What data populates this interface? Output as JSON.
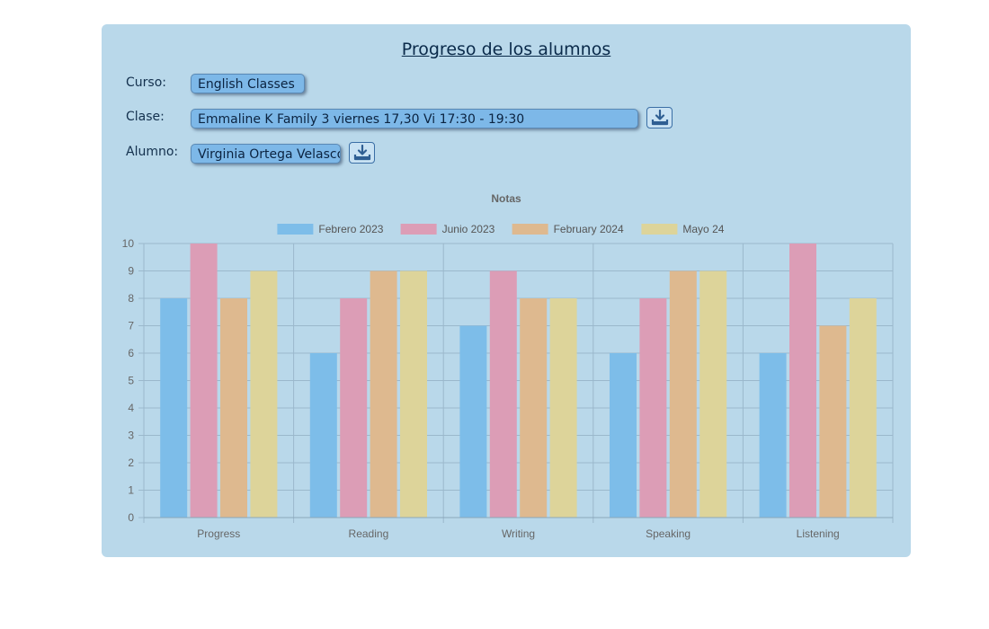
{
  "page": {
    "title": "Progreso de los alumnos"
  },
  "form": {
    "curso_label": "Curso:",
    "curso_value": "English Classes",
    "clase_label": "Clase:",
    "clase_value": "Emmaline K Family 3 viernes 17,30 Vi 17:30 - 19:30",
    "alumno_label": "Alumno:",
    "alumno_value": "Virginia Ortega Velasco",
    "download_icon": "download-icon"
  },
  "chart_data": {
    "type": "bar",
    "title": "Notas",
    "categories": [
      "Progress",
      "Reading",
      "Writing",
      "Speaking",
      "Listening"
    ],
    "series": [
      {
        "name": "Febrero 2023",
        "values": [
          8,
          6,
          7,
          6,
          6
        ],
        "color": "#7dbde9"
      },
      {
        "name": "Junio 2023",
        "values": [
          10,
          8,
          9,
          8,
          10
        ],
        "color": "#dc9db6"
      },
      {
        "name": "February 2024",
        "values": [
          8,
          9,
          8,
          9,
          7
        ],
        "color": "#deb98f"
      },
      {
        "name": "Mayo 24",
        "values": [
          9,
          9,
          8,
          9,
          8
        ],
        "color": "#ddd49a"
      }
    ],
    "ylim": [
      0,
      10
    ],
    "yticks": [
      0,
      1,
      2,
      3,
      4,
      5,
      6,
      7,
      8,
      9,
      10
    ],
    "legend": "top",
    "grid": true
  },
  "colors": {
    "panel": "#b9d8ea",
    "select": "#7db8e8",
    "title": "#0a2a4a"
  }
}
